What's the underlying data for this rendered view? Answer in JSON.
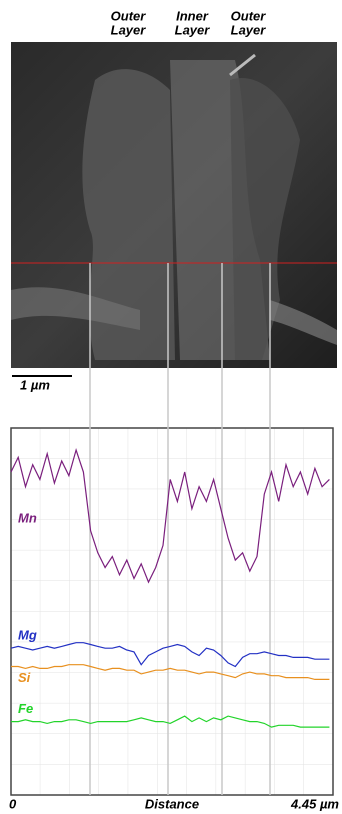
{
  "micrograph": {
    "layer_labels": [
      [
        "Outer",
        "Layer"
      ],
      [
        "Inner",
        "Layer"
      ],
      [
        "Outer",
        "Layer"
      ]
    ],
    "scale_bar": "1 µm"
  },
  "chart_data": {
    "type": "line",
    "xlabel": "Distance",
    "x": [
      0,
      0.1,
      0.2,
      0.3,
      0.4,
      0.5,
      0.6,
      0.7,
      0.8,
      0.9,
      1.0,
      1.1,
      1.2,
      1.3,
      1.4,
      1.5,
      1.6,
      1.7,
      1.8,
      1.9,
      2.0,
      2.1,
      2.2,
      2.3,
      2.4,
      2.5,
      2.6,
      2.7,
      2.8,
      2.9,
      3.0,
      3.1,
      3.2,
      3.3,
      3.4,
      3.5,
      3.6,
      3.7,
      3.8,
      3.9,
      4.0,
      4.1,
      4.2,
      4.3,
      4.4
    ],
    "xlim": [
      0,
      4.45
    ],
    "xticks": [
      0,
      {
        "value": 4.45,
        "label": "4.45 µm"
      }
    ],
    "ylim": [
      0,
      100
    ],
    "series": [
      {
        "name": "Mn",
        "color": "#7a1f7d",
        "values": [
          88,
          92,
          84,
          90,
          86,
          93,
          85,
          91,
          87,
          94,
          88,
          72,
          66,
          62,
          65,
          60,
          64,
          59,
          63,
          58,
          62,
          68,
          86,
          80,
          88,
          78,
          84,
          80,
          86,
          78,
          70,
          64,
          66,
          61,
          65,
          82,
          88,
          80,
          90,
          84,
          88,
          82,
          89,
          84,
          86
        ]
      },
      {
        "name": "Mg",
        "color": "#2331c4",
        "values": [
          40,
          40.5,
          40,
          39.5,
          40,
          40.5,
          40,
          40.5,
          41,
          41.5,
          41.5,
          41,
          40.5,
          40,
          40,
          40.5,
          39.5,
          39,
          35.5,
          38,
          39,
          40,
          40.5,
          41,
          40.5,
          39,
          38,
          40,
          39.5,
          38,
          36,
          35,
          37.5,
          38.5,
          38.5,
          39,
          38.5,
          38,
          38,
          37.5,
          37.5,
          37.5,
          37,
          37,
          37
        ]
      },
      {
        "name": "Si",
        "color": "#e8901f",
        "values": [
          35,
          35,
          34.5,
          35,
          34.5,
          34.5,
          35,
          35,
          35.5,
          35.5,
          35.5,
          35,
          34.5,
          34,
          34.5,
          34.5,
          34,
          34,
          33,
          33.5,
          34,
          34,
          34.5,
          34,
          34,
          33.5,
          33,
          33.5,
          33.5,
          33,
          32.5,
          32,
          33,
          33.5,
          33,
          33,
          32.5,
          32.5,
          32,
          32,
          32,
          32,
          31.5,
          31.5,
          31.5
        ]
      },
      {
        "name": "Fe",
        "color": "#22d42a",
        "values": [
          20,
          20,
          20.5,
          20,
          20,
          19.5,
          20,
          20,
          20.5,
          20.5,
          20,
          19.5,
          20,
          20,
          20,
          20,
          20,
          20.5,
          21,
          20.5,
          20,
          20,
          19.5,
          20.5,
          21.5,
          20,
          21,
          20,
          21,
          20.5,
          21.5,
          21,
          20.5,
          20,
          20,
          19.5,
          18.5,
          19,
          19,
          19,
          18.5,
          18.5,
          18.5,
          18.5,
          18.5
        ]
      }
    ]
  }
}
